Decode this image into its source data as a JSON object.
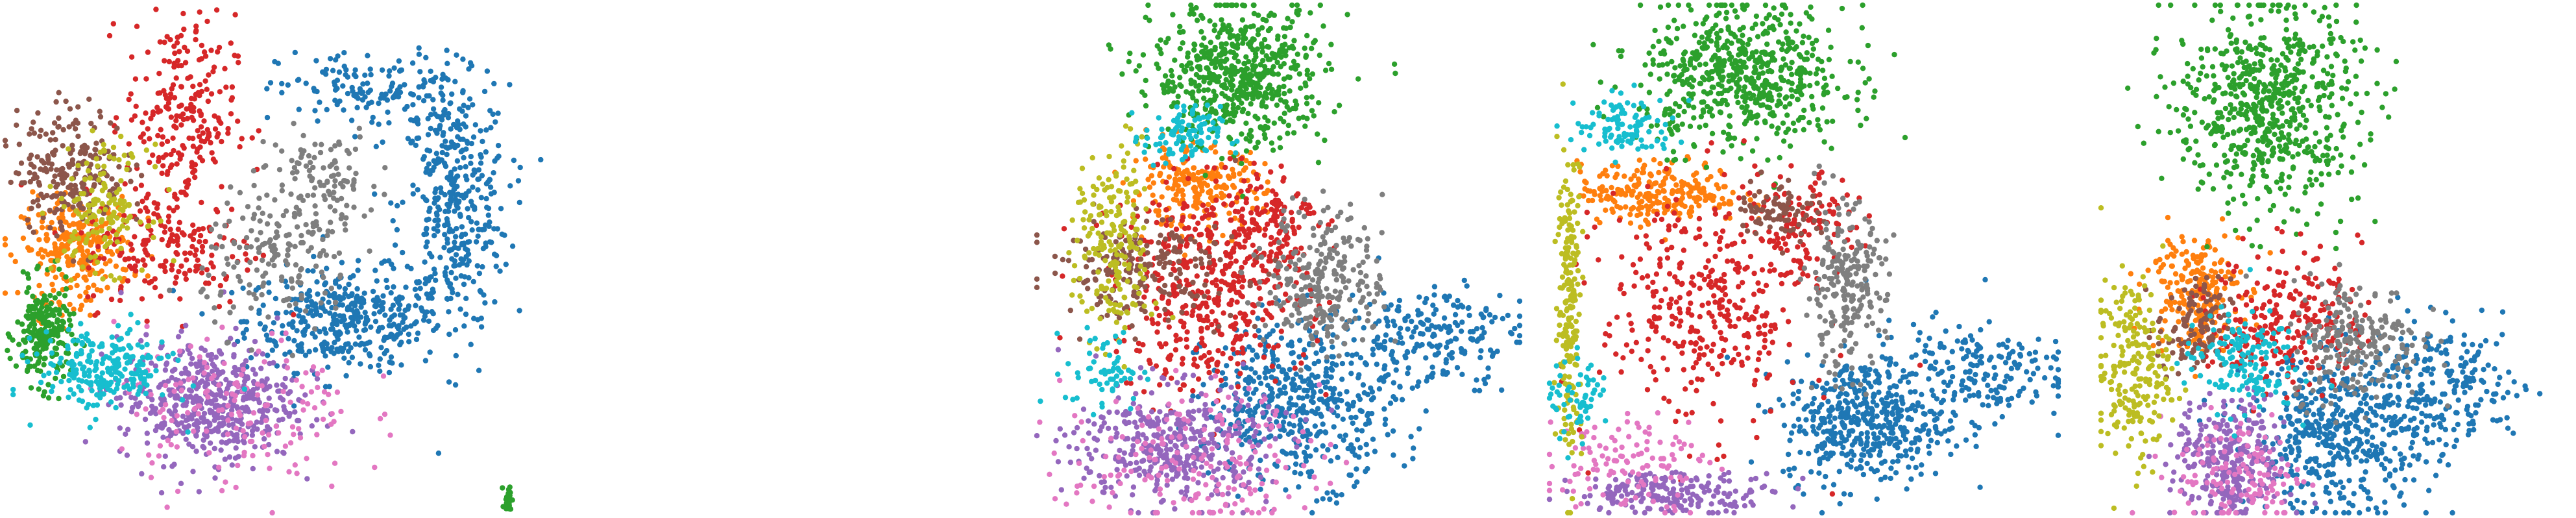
{
  "palette": {
    "blue": "#1f77b4",
    "orange": "#ff7f0e",
    "green": "#2ca02c",
    "red": "#d62728",
    "purple": "#9467bd",
    "brown": "#8c564b",
    "pink": "#e377c2",
    "gray": "#7f7f7f",
    "olive": "#bcbd22",
    "cyan": "#17becf"
  },
  "chart_data": [
    {
      "type": "scatter",
      "title": "",
      "xlabel": "",
      "ylabel": "",
      "axes_visible": false,
      "grid": false,
      "legend": "none",
      "xlim": [
        0,
        1
      ],
      "ylim": [
        0,
        1
      ],
      "series": [
        {
          "color": "#1f77b4",
          "clusters": [
            {
              "cx": 0.62,
              "cy": 0.38,
              "sx": 0.09,
              "sy": 0.05,
              "n": 380
            },
            {
              "cx": 0.82,
              "cy": 0.6,
              "sx": 0.05,
              "sy": 0.12,
              "n": 380
            },
            {
              "cx": 0.68,
              "cy": 0.83,
              "sx": 0.09,
              "sy": 0.04,
              "n": 160
            }
          ]
        },
        {
          "color": "#ff7f0e",
          "clusters": [
            {
              "cx": 0.13,
              "cy": 0.52,
              "sx": 0.05,
              "sy": 0.05,
              "n": 260
            }
          ]
        },
        {
          "color": "#2ca02c",
          "clusters": [
            {
              "cx": 0.07,
              "cy": 0.35,
              "sx": 0.025,
              "sy": 0.05,
              "n": 220
            },
            {
              "cx": 0.92,
              "cy": 0.03,
              "sx": 0.004,
              "sy": 0.015,
              "n": 25
            }
          ]
        },
        {
          "color": "#d62728",
          "clusters": [
            {
              "cx": 0.32,
              "cy": 0.78,
              "sx": 0.05,
              "sy": 0.1,
              "n": 240
            },
            {
              "cx": 0.3,
              "cy": 0.52,
              "sx": 0.08,
              "sy": 0.06,
              "n": 180
            }
          ]
        },
        {
          "color": "#9467bd",
          "clusters": [
            {
              "cx": 0.37,
              "cy": 0.22,
              "sx": 0.08,
              "sy": 0.06,
              "n": 500
            }
          ]
        },
        {
          "color": "#8c564b",
          "clusters": [
            {
              "cx": 0.12,
              "cy": 0.68,
              "sx": 0.05,
              "sy": 0.06,
              "n": 230
            }
          ]
        },
        {
          "color": "#e377c2",
          "clusters": [
            {
              "cx": 0.42,
              "cy": 0.2,
              "sx": 0.11,
              "sy": 0.08,
              "n": 160
            }
          ]
        },
        {
          "color": "#7f7f7f",
          "clusters": [
            {
              "cx": 0.5,
              "cy": 0.5,
              "sx": 0.07,
              "sy": 0.07,
              "n": 170
            },
            {
              "cx": 0.58,
              "cy": 0.66,
              "sx": 0.05,
              "sy": 0.05,
              "n": 100
            }
          ]
        },
        {
          "color": "#bcbd22",
          "clusters": [
            {
              "cx": 0.18,
              "cy": 0.6,
              "sx": 0.04,
              "sy": 0.06,
              "n": 150
            }
          ]
        },
        {
          "color": "#17becf",
          "clusters": [
            {
              "cx": 0.18,
              "cy": 0.28,
              "sx": 0.06,
              "sy": 0.04,
              "n": 230
            }
          ]
        }
      ]
    },
    {
      "type": "scatter",
      "title": "",
      "xlabel": "",
      "ylabel": "",
      "axes_visible": false,
      "grid": false,
      "legend": "none",
      "xlim": [
        0,
        1
      ],
      "ylim": [
        0,
        1
      ],
      "series": [
        {
          "color": "#1f77b4",
          "clusters": [
            {
              "cx": 0.55,
              "cy": 0.22,
              "sx": 0.1,
              "sy": 0.08,
              "n": 500
            },
            {
              "cx": 0.82,
              "cy": 0.35,
              "sx": 0.09,
              "sy": 0.05,
              "n": 200
            }
          ]
        },
        {
          "color": "#ff7f0e",
          "clusters": [
            {
              "cx": 0.33,
              "cy": 0.64,
              "sx": 0.07,
              "sy": 0.04,
              "n": 220
            }
          ]
        },
        {
          "color": "#2ca02c",
          "clusters": [
            {
              "cx": 0.42,
              "cy": 0.86,
              "sx": 0.09,
              "sy": 0.07,
              "n": 600
            }
          ]
        },
        {
          "color": "#d62728",
          "clusters": [
            {
              "cx": 0.36,
              "cy": 0.44,
              "sx": 0.1,
              "sy": 0.1,
              "n": 450
            },
            {
              "cx": 0.48,
              "cy": 0.58,
              "sx": 0.05,
              "sy": 0.05,
              "n": 120
            }
          ]
        },
        {
          "color": "#9467bd",
          "clusters": [
            {
              "cx": 0.28,
              "cy": 0.13,
              "sx": 0.1,
              "sy": 0.06,
              "n": 400
            }
          ]
        },
        {
          "color": "#8c564b",
          "clusters": [
            {
              "cx": 0.22,
              "cy": 0.48,
              "sx": 0.1,
              "sy": 0.05,
              "n": 200
            }
          ]
        },
        {
          "color": "#e377c2",
          "clusters": [
            {
              "cx": 0.32,
              "cy": 0.1,
              "sx": 0.13,
              "sy": 0.07,
              "n": 180
            }
          ]
        },
        {
          "color": "#7f7f7f",
          "clusters": [
            {
              "cx": 0.6,
              "cy": 0.46,
              "sx": 0.06,
              "sy": 0.07,
              "n": 260
            }
          ]
        },
        {
          "color": "#bcbd22",
          "clusters": [
            {
              "cx": 0.16,
              "cy": 0.52,
              "sx": 0.04,
              "sy": 0.1,
              "n": 200
            }
          ]
        },
        {
          "color": "#17becf",
          "clusters": [
            {
              "cx": 0.3,
              "cy": 0.74,
              "sx": 0.04,
              "sy": 0.03,
              "n": 100
            },
            {
              "cx": 0.14,
              "cy": 0.28,
              "sx": 0.04,
              "sy": 0.04,
              "n": 60
            }
          ]
        }
      ]
    },
    {
      "type": "scatter",
      "title": "",
      "xlabel": "",
      "ylabel": "",
      "axes_visible": false,
      "grid": false,
      "legend": "none",
      "xlim": [
        0,
        1
      ],
      "ylim": [
        0,
        1
      ],
      "series": [
        {
          "color": "#1f77b4",
          "clusters": [
            {
              "cx": 0.62,
              "cy": 0.18,
              "sx": 0.08,
              "sy": 0.06,
              "n": 450
            },
            {
              "cx": 0.82,
              "cy": 0.28,
              "sx": 0.1,
              "sy": 0.05,
              "n": 200
            }
          ]
        },
        {
          "color": "#ff7f0e",
          "clusters": [
            {
              "cx": 0.22,
              "cy": 0.63,
              "sx": 0.08,
              "sy": 0.03,
              "n": 250
            }
          ]
        },
        {
          "color": "#2ca02c",
          "clusters": [
            {
              "cx": 0.38,
              "cy": 0.86,
              "sx": 0.1,
              "sy": 0.07,
              "n": 600
            }
          ]
        },
        {
          "color": "#d62728",
          "clusters": [
            {
              "cx": 0.3,
              "cy": 0.4,
              "sx": 0.1,
              "sy": 0.12,
              "n": 350
            },
            {
              "cx": 0.5,
              "cy": 0.56,
              "sx": 0.05,
              "sy": 0.05,
              "n": 120
            }
          ]
        },
        {
          "color": "#9467bd",
          "clusters": [
            {
              "cx": 0.25,
              "cy": 0.04,
              "sx": 0.1,
              "sy": 0.02,
              "n": 200
            }
          ]
        },
        {
          "color": "#8c564b",
          "clusters": [
            {
              "cx": 0.45,
              "cy": 0.6,
              "sx": 0.04,
              "sy": 0.03,
              "n": 80
            }
          ]
        },
        {
          "color": "#e377c2",
          "clusters": [
            {
              "cx": 0.15,
              "cy": 0.1,
              "sx": 0.08,
              "sy": 0.05,
              "n": 120
            }
          ]
        },
        {
          "color": "#7f7f7f",
          "clusters": [
            {
              "cx": 0.58,
              "cy": 0.44,
              "sx": 0.04,
              "sy": 0.08,
              "n": 230
            }
          ]
        },
        {
          "color": "#bcbd22",
          "clusters": [
            {
              "cx": 0.04,
              "cy": 0.42,
              "sx": 0.012,
              "sy": 0.15,
              "n": 200
            }
          ]
        },
        {
          "color": "#17becf",
          "clusters": [
            {
              "cx": 0.15,
              "cy": 0.76,
              "sx": 0.05,
              "sy": 0.03,
              "n": 100
            },
            {
              "cx": 0.06,
              "cy": 0.22,
              "sx": 0.03,
              "sy": 0.04,
              "n": 60
            }
          ]
        }
      ]
    },
    {
      "type": "scatter",
      "title": "",
      "xlabel": "",
      "ylabel": "",
      "axes_visible": false,
      "grid": false,
      "legend": "none",
      "xlim": [
        0,
        1
      ],
      "ylim": [
        0,
        1
      ],
      "series": [
        {
          "color": "#1f77b4",
          "clusters": [
            {
              "cx": 0.52,
              "cy": 0.16,
              "sx": 0.1,
              "sy": 0.08,
              "n": 500
            },
            {
              "cx": 0.75,
              "cy": 0.25,
              "sx": 0.08,
              "sy": 0.06,
              "n": 200
            }
          ]
        },
        {
          "color": "#ff7f0e",
          "clusters": [
            {
              "cx": 0.2,
              "cy": 0.44,
              "sx": 0.05,
              "sy": 0.06,
              "n": 220
            }
          ]
        },
        {
          "color": "#2ca02c",
          "clusters": [
            {
              "cx": 0.36,
              "cy": 0.8,
              "sx": 0.1,
              "sy": 0.1,
              "n": 650
            }
          ]
        },
        {
          "color": "#d62728",
          "clusters": [
            {
              "cx": 0.4,
              "cy": 0.38,
              "sx": 0.08,
              "sy": 0.07,
              "n": 250
            }
          ]
        },
        {
          "color": "#9467bd",
          "clusters": [
            {
              "cx": 0.28,
              "cy": 0.1,
              "sx": 0.06,
              "sy": 0.06,
              "n": 300
            }
          ]
        },
        {
          "color": "#8c564b",
          "clusters": [
            {
              "cx": 0.2,
              "cy": 0.36,
              "sx": 0.04,
              "sy": 0.05,
              "n": 120
            }
          ]
        },
        {
          "color": "#e377c2",
          "clusters": [
            {
              "cx": 0.3,
              "cy": 0.08,
              "sx": 0.07,
              "sy": 0.06,
              "n": 130
            }
          ]
        },
        {
          "color": "#7f7f7f",
          "clusters": [
            {
              "cx": 0.55,
              "cy": 0.34,
              "sx": 0.07,
              "sy": 0.06,
              "n": 220
            }
          ]
        },
        {
          "color": "#bcbd22",
          "clusters": [
            {
              "cx": 0.07,
              "cy": 0.28,
              "sx": 0.04,
              "sy": 0.09,
              "n": 220
            }
          ]
        },
        {
          "color": "#17becf",
          "clusters": [
            {
              "cx": 0.3,
              "cy": 0.3,
              "sx": 0.06,
              "sy": 0.05,
              "n": 150
            }
          ]
        }
      ]
    }
  ]
}
